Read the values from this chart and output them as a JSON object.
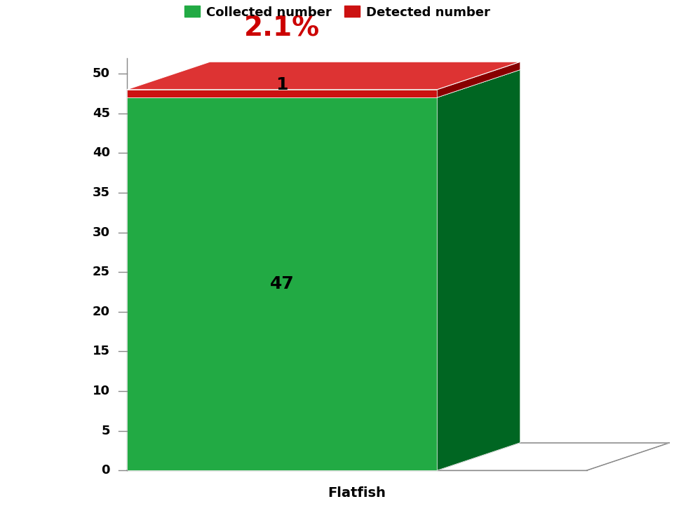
{
  "categories": [
    "Flatfish"
  ],
  "collected_value": 47,
  "detected_value": 1,
  "total_value": 48,
  "percentage_label": "2.1%",
  "collected_label": "47",
  "detected_label": "1",
  "bar_green_front": "#22AA44",
  "bar_green_side": "#006622",
  "bar_green_top": "#33BB55",
  "bar_red_front": "#CC1111",
  "bar_red_side": "#880000",
  "bar_red_top": "#DD3333",
  "legend_collected": "Collected number",
  "legend_detected": "Detected number",
  "xlabel": "Flatfish",
  "yticks": [
    0,
    5,
    10,
    15,
    20,
    25,
    30,
    35,
    40,
    45,
    50
  ],
  "percentage_color": "#CC0000",
  "label_color": "#000000",
  "label_fontsize": 18,
  "percentage_fontsize": 28,
  "legend_fontsize": 13,
  "axis_tick_fontsize": 13
}
